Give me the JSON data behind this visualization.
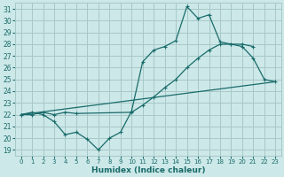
{
  "xlabel": "Humidex (Indice chaleur)",
  "bg_color": "#cce8e8",
  "grid_color": "#a8c8c8",
  "line_color": "#1a6b6b",
  "xlim": [
    -0.5,
    23.5
  ],
  "ylim": [
    18.5,
    31.5
  ],
  "xticks": [
    0,
    1,
    2,
    3,
    4,
    5,
    6,
    7,
    8,
    9,
    10,
    11,
    12,
    13,
    14,
    15,
    16,
    17,
    18,
    19,
    20,
    21,
    22,
    23
  ],
  "yticks": [
    19,
    20,
    21,
    22,
    23,
    24,
    25,
    26,
    27,
    28,
    29,
    30,
    31
  ],
  "line1_x": [
    0,
    1,
    2,
    3,
    4,
    5,
    6,
    7,
    8,
    9,
    10,
    11,
    12,
    13,
    14,
    15,
    16,
    17,
    18,
    19,
    20,
    21,
    22,
    23
  ],
  "line1_y": [
    22.0,
    22.2,
    22.0,
    21.4,
    20.3,
    20.5,
    19.9,
    19.0,
    20.0,
    20.5,
    22.3,
    26.5,
    27.5,
    27.8,
    28.3,
    31.2,
    30.2,
    30.5,
    28.2,
    28.0,
    27.8,
    26.8,
    25.0,
    24.8
  ],
  "line2_x": [
    0,
    1,
    2,
    3,
    4,
    5,
    10,
    11,
    12,
    13,
    14,
    15,
    16,
    17,
    18,
    19,
    20,
    21
  ],
  "line2_y": [
    22.0,
    22.0,
    22.2,
    22.0,
    22.2,
    22.1,
    22.2,
    22.8,
    23.5,
    24.3,
    25.0,
    26.0,
    26.8,
    27.5,
    28.0,
    28.0,
    28.0,
    27.8
  ],
  "line3_x": [
    0,
    23
  ],
  "line3_y": [
    22.0,
    24.8
  ]
}
